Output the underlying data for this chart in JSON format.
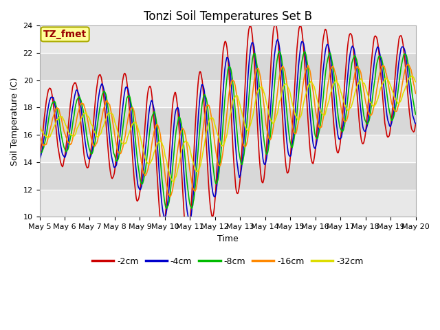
{
  "title": "Tonzi Soil Temperatures Set B",
  "xlabel": "Time",
  "ylabel": "Soil Temperature (C)",
  "ylim": [
    10,
    24
  ],
  "yticks": [
    10,
    12,
    14,
    16,
    18,
    20,
    22,
    24
  ],
  "legend_label": "TZ_fmet",
  "series_labels": [
    "-2cm",
    "-4cm",
    "-8cm",
    "-16cm",
    "-32cm"
  ],
  "series_colors": [
    "#cc0000",
    "#0000cc",
    "#00bb00",
    "#ff8800",
    "#dddd00"
  ],
  "plot_bg_color": "#e8e8e8",
  "fig_bg_color": "#ffffff",
  "title_fontsize": 12,
  "axis_fontsize": 9,
  "tick_fontsize": 8,
  "legend_fontsize": 9,
  "n_days": 15,
  "start_day": 5,
  "xtick_labels": [
    "May 5",
    "May 6",
    "May 7",
    "May 8",
    "May 9",
    "May 10",
    "May 11",
    "May 12",
    "May 13",
    "May 14",
    "May 15",
    "May 16",
    "May 17",
    "May 18",
    "May 19",
    "May 20"
  ],
  "annotation_text": "TZ_fmet",
  "annotation_color": "#990000",
  "annotation_bg": "#ffff99",
  "annotation_edge": "#aaaa00"
}
